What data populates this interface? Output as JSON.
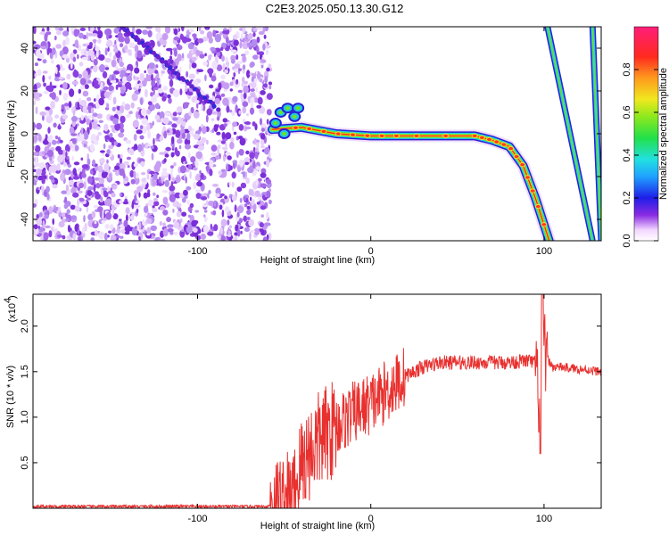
{
  "title": "C2E3.2025.050.13.30.G12",
  "chart_data": [
    {
      "type": "heatmap",
      "xlabel": "Height of straight line (km)",
      "ylabel": "Frequency (Hz)",
      "xlim": [
        -195,
        133
      ],
      "ylim": [
        -50,
        50
      ],
      "xticks": [
        -100,
        0,
        100
      ],
      "yticks": [
        -40,
        -20,
        0,
        20,
        40
      ],
      "colorbar": {
        "label": "Normalized spectral amplitude",
        "range": [
          0.0,
          1.0
        ],
        "ticks": [
          "0.0",
          "0.2",
          "0.4",
          "0.6",
          "0.8"
        ]
      },
      "features": {
        "noise_region_x": [
          -195,
          -58
        ],
        "carrier_line": [
          {
            "x": -57,
            "y": 2
          },
          {
            "x": -40,
            "y": 3
          },
          {
            "x": -20,
            "y": 0
          },
          {
            "x": 0,
            "y": -1
          },
          {
            "x": 20,
            "y": -1
          },
          {
            "x": 60,
            "y": -1
          },
          {
            "x": 70,
            "y": -3
          },
          {
            "x": 80,
            "y": -6
          },
          {
            "x": 88,
            "y": -15
          },
          {
            "x": 95,
            "y": -30
          },
          {
            "x": 103,
            "y": -50
          }
        ],
        "aliased_lines": [
          {
            "x_top": 102,
            "x_bottom": 128
          },
          {
            "x_top": 128,
            "x_bottom": 133
          }
        ]
      }
    },
    {
      "type": "line",
      "xlabel": "Height of straight line (km)",
      "ylabel": "SNR (10 * v/v)",
      "yscale_label": "(x10",
      "yscale_exponent": "4",
      "xlim": [
        -195,
        133
      ],
      "ylim": [
        0,
        2.35
      ],
      "xticks": [
        -100,
        0,
        100
      ],
      "yticks": [
        "0.5",
        "1.0",
        "1.5",
        "2.0"
      ],
      "series": [
        {
          "color": "#e8312f",
          "x": [
            -195,
            -60,
            -45,
            -40,
            -30,
            -20,
            -10,
            0,
            10,
            20,
            30,
            40,
            50,
            60,
            70,
            80,
            90,
            95,
            98,
            100,
            105,
            110,
            120,
            133
          ],
          "y": [
            0.02,
            0.02,
            0.1,
            0.5,
            0.75,
            0.9,
            1.05,
            1.15,
            1.3,
            1.45,
            1.55,
            1.6,
            1.6,
            1.6,
            1.6,
            1.6,
            1.62,
            1.6,
            1.0,
            1.7,
            1.55,
            1.55,
            1.53,
            1.5
          ]
        }
      ]
    }
  ]
}
